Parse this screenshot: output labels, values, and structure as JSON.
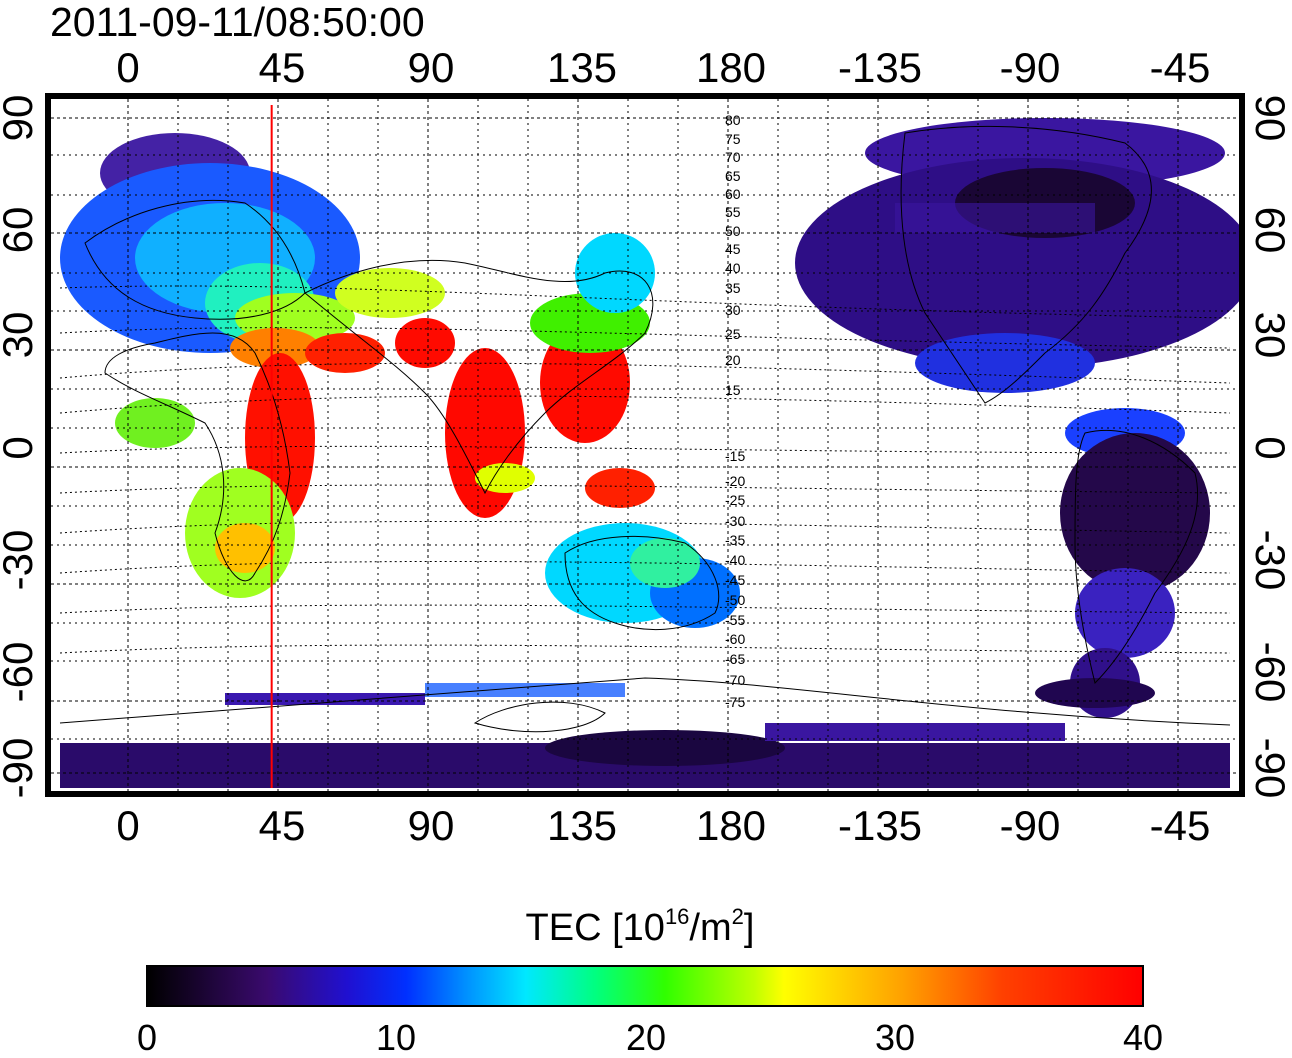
{
  "title": "2011-09-11/08:50:00",
  "map": {
    "lon_ticks": [
      "0",
      "45",
      "90",
      "135",
      "180",
      "-135",
      "-90",
      "-45"
    ],
    "lat_ticks": [
      "90",
      "60",
      "30",
      "0",
      "-30",
      "-60",
      "-90"
    ],
    "contour_labels": [
      "80",
      "75",
      "70",
      "65",
      "60",
      "55",
      "50",
      "45",
      "40",
      "35",
      "30",
      "25",
      "20",
      "15",
      "-15",
      "-20",
      "-25",
      "-30",
      "-35",
      "-40",
      "-45",
      "-50",
      "-55",
      "-60",
      "-65",
      "-70",
      "-75"
    ],
    "marker_longitude": 48,
    "marker_color": "#ff0000",
    "lon_range": [
      -20,
      340
    ],
    "lat_range": [
      -90,
      90
    ],
    "grid": true
  },
  "colorbar": {
    "title_text": "TEC  [10",
    "title_exp1": "16",
    "title_mid": "/m",
    "title_exp2": "2",
    "title_end": "]",
    "ticks": [
      "0",
      "10",
      "20",
      "30",
      "40"
    ],
    "range": [
      0,
      40
    ]
  }
}
